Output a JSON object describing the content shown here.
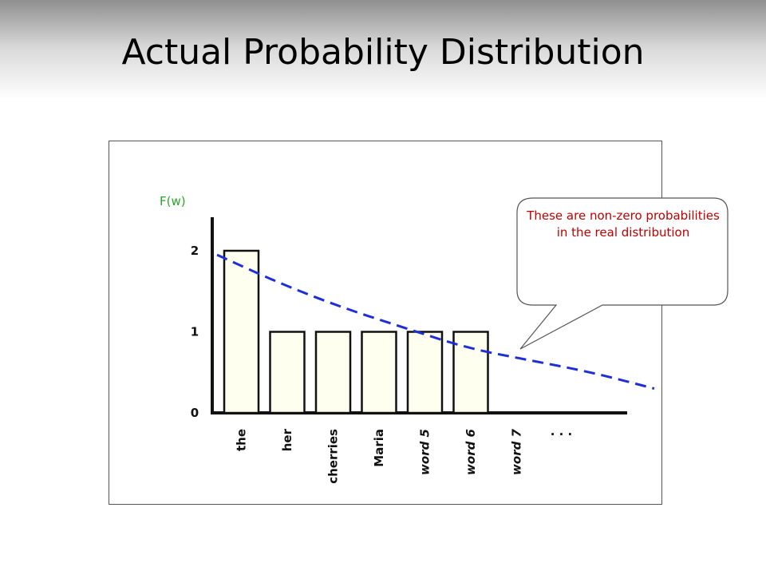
{
  "slide": {
    "title": "Actual Probability Distribution"
  },
  "callout": {
    "text": "These are non-zero probabilities in the real distribution"
  },
  "chart_data": {
    "type": "bar",
    "ylabel": "F(w)",
    "categories": [
      "the",
      "her",
      "cherries",
      "Maria",
      "word 5",
      "word 6",
      "word 7"
    ],
    "italic_categories": [
      "word 5",
      "word 6",
      "word 7"
    ],
    "values": [
      2,
      1,
      1,
      1,
      1,
      1,
      0
    ],
    "ellipsis": ". . .",
    "yticks": [
      "0",
      "1",
      "2"
    ],
    "ylim": [
      0,
      2.5
    ],
    "grid": false,
    "bar_fill": "#fffff0",
    "curve": {
      "style": "dashed",
      "color": "#1f2fd6",
      "values": [
        1.95,
        1.6,
        1.3,
        1.05,
        0.8,
        0.65,
        0.5,
        0.3
      ]
    }
  }
}
